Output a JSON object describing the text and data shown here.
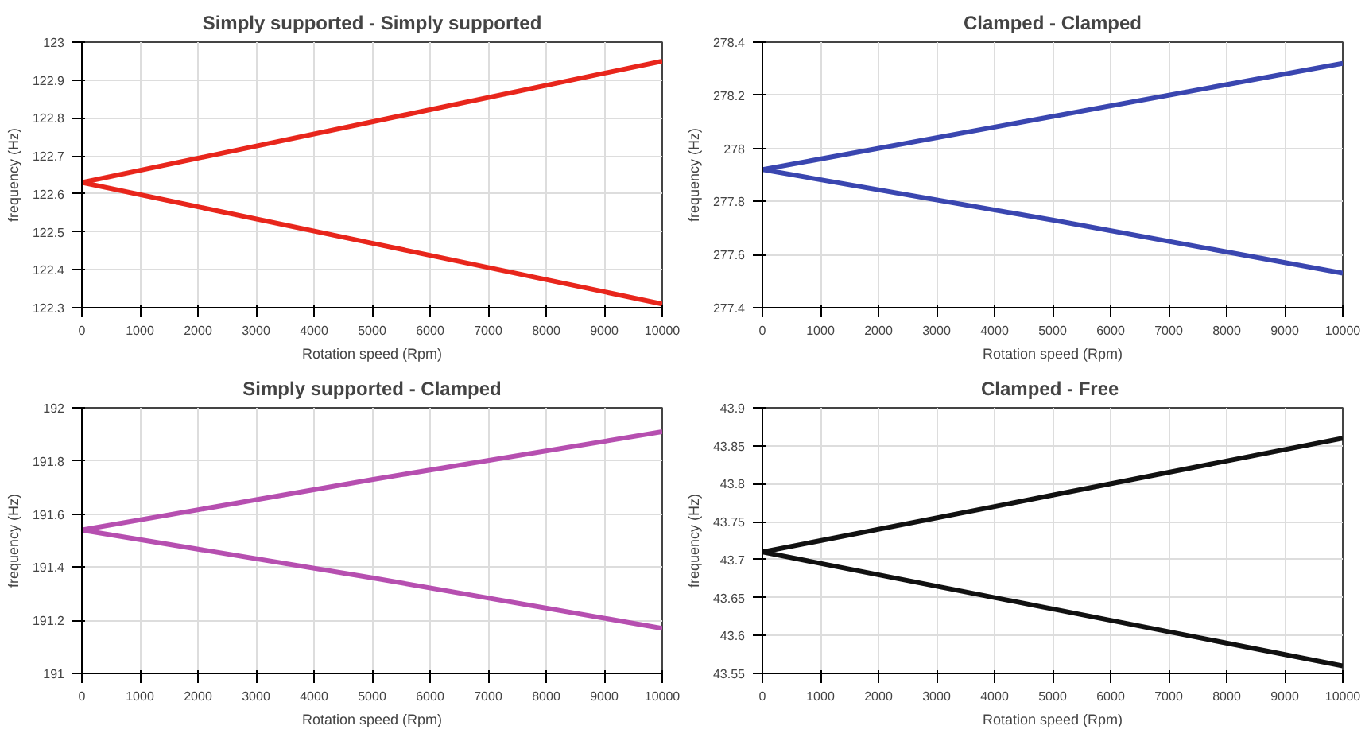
{
  "chart_data": [
    {
      "type": "line",
      "title": "Simply supported - Simply supported",
      "xlabel": "Rotation speed (Rpm)",
      "ylabel": "frequency (Hz)",
      "series": [
        {
          "color": "#e8261c",
          "x": [
            0,
            5000,
            10000
          ],
          "values": [
            122.63,
            122.79,
            122.95
          ]
        },
        {
          "color": "#e8261c",
          "x": [
            0,
            5000,
            10000
          ],
          "values": [
            122.63,
            122.47,
            122.31
          ]
        }
      ],
      "xlim": [
        0,
        10000
      ],
      "xticks": [
        0,
        1000,
        2000,
        3000,
        4000,
        5000,
        6000,
        7000,
        8000,
        9000,
        10000
      ],
      "ylim": [
        122.3,
        123
      ],
      "yticks": [
        122.3,
        122.4,
        122.5,
        122.6,
        122.7,
        122.8,
        122.9,
        123
      ],
      "grid": true
    },
    {
      "type": "line",
      "title": "Clamped - Clamped",
      "xlabel": "Rotation speed (Rpm)",
      "ylabel": "frequency (Hz)",
      "series": [
        {
          "color": "#3a46b0",
          "x": [
            0,
            5000,
            10000
          ],
          "values": [
            277.92,
            278.12,
            278.32
          ]
        },
        {
          "color": "#3a46b0",
          "x": [
            0,
            5000,
            10000
          ],
          "values": [
            277.92,
            277.73,
            277.53
          ]
        }
      ],
      "xlim": [
        0,
        10000
      ],
      "xticks": [
        0,
        1000,
        2000,
        3000,
        4000,
        5000,
        6000,
        7000,
        8000,
        9000,
        10000
      ],
      "ylim": [
        277.4,
        278.4
      ],
      "yticks": [
        277.4,
        277.6,
        277.8,
        278,
        278.2,
        278.4
      ],
      "grid": true
    },
    {
      "type": "line",
      "title": "Simply supported - Clamped",
      "xlabel": "Rotation speed (Rpm)",
      "ylabel": "frequency (Hz)",
      "series": [
        {
          "color": "#b64fb0",
          "x": [
            0,
            5000,
            10000
          ],
          "values": [
            191.54,
            191.73,
            191.91
          ]
        },
        {
          "color": "#b64fb0",
          "x": [
            0,
            5000,
            10000
          ],
          "values": [
            191.54,
            191.36,
            191.17
          ]
        }
      ],
      "xlim": [
        0,
        10000
      ],
      "xticks": [
        0,
        1000,
        2000,
        3000,
        4000,
        5000,
        6000,
        7000,
        8000,
        9000,
        10000
      ],
      "ylim": [
        191,
        192
      ],
      "yticks": [
        191,
        191.2,
        191.4,
        191.6,
        191.8,
        192
      ],
      "grid": true
    },
    {
      "type": "line",
      "title": "Clamped  - Free",
      "xlabel": "Rotation speed (Rpm)",
      "ylabel": "frequency (Hz)",
      "series": [
        {
          "color": "#111111",
          "x": [
            0,
            5000,
            10000
          ],
          "values": [
            43.71,
            43.785,
            43.86
          ]
        },
        {
          "color": "#111111",
          "x": [
            0,
            5000,
            10000
          ],
          "values": [
            43.71,
            43.635,
            43.56
          ]
        }
      ],
      "xlim": [
        0,
        10000
      ],
      "xticks": [
        0,
        1000,
        2000,
        3000,
        4000,
        5000,
        6000,
        7000,
        8000,
        9000,
        10000
      ],
      "ylim": [
        43.55,
        43.9
      ],
      "yticks": [
        43.55,
        43.6,
        43.65,
        43.7,
        43.75,
        43.8,
        43.85,
        43.9
      ],
      "grid": true
    }
  ]
}
